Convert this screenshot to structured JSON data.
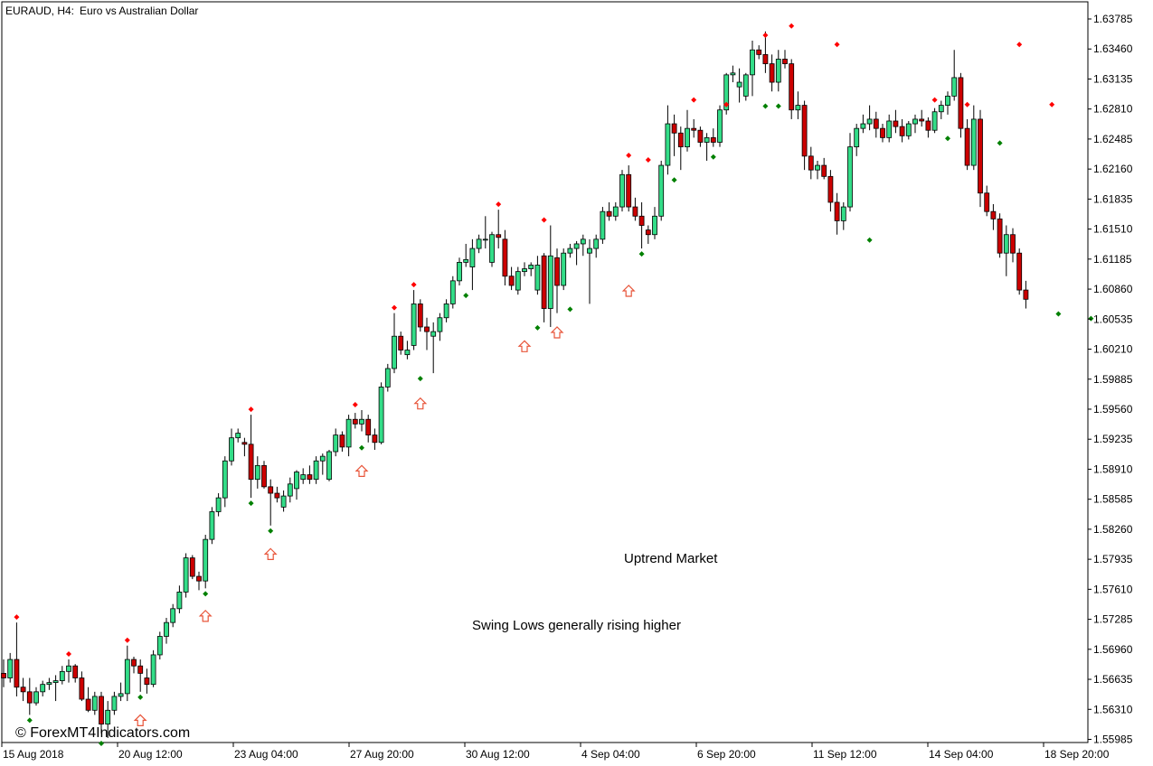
{
  "header": {
    "symbol": "EURAUD, H4:",
    "description": "Euro vs Australian Dollar"
  },
  "watermark": "© ForexMT4Indicators.com",
  "annotations": {
    "trend": "Uptrend Market",
    "note": "Swing Lows generally rising higher"
  },
  "colors": {
    "bull": "#33dd88",
    "bear": "#cc0000",
    "frame": "#000000",
    "swing_high_dot": "#ff0000",
    "swing_low_dot": "#008000",
    "arrow": "#e8553a"
  },
  "chart_data": {
    "type": "candlestick",
    "symbol": "EURAUD",
    "timeframe": "H4",
    "ylim": [
      1.5585,
      1.6395
    ],
    "price_labels": [
      "1.63785",
      "1.63460",
      "1.63135",
      "1.62810",
      "1.62485",
      "1.62160",
      "1.61835",
      "1.61510",
      "1.61185",
      "1.60860",
      "1.60535",
      "1.60210",
      "1.59885",
      "1.59560",
      "1.59235",
      "1.58910",
      "1.58585",
      "1.58260",
      "1.57935",
      "1.57610",
      "1.57285",
      "1.56960",
      "1.56635",
      "1.56310",
      "1.55985"
    ],
    "time_labels": [
      "15 Aug 2018",
      "20 Aug 12:00",
      "23 Aug 04:00",
      "27 Aug 20:00",
      "30 Aug 12:00",
      "4 Sep 04:00",
      "6 Sep 20:00",
      "11 Sep 12:00",
      "14 Sep 04:00",
      "18 Sep 20:00"
    ],
    "candles": [
      [
        1.567,
        1.5685,
        1.5655,
        1.5665
      ],
      [
        1.5665,
        1.5692,
        1.566,
        1.5685
      ],
      [
        1.5685,
        1.5725,
        1.5645,
        1.5655
      ],
      [
        1.5655,
        1.5665,
        1.564,
        1.565
      ],
      [
        1.565,
        1.5665,
        1.5625,
        1.5638
      ],
      [
        1.5638,
        1.5655,
        1.5635,
        1.565
      ],
      [
        1.565,
        1.5662,
        1.5645,
        1.5658
      ],
      [
        1.5658,
        1.5665,
        1.5652,
        1.566
      ],
      [
        1.566,
        1.5668,
        1.564,
        1.5662
      ],
      [
        1.5662,
        1.5678,
        1.5658,
        1.5672
      ],
      [
        1.5672,
        1.5685,
        1.566,
        1.5678
      ],
      [
        1.5678,
        1.568,
        1.566,
        1.5665
      ],
      [
        1.5665,
        1.5672,
        1.564,
        1.5642
      ],
      [
        1.5642,
        1.5655,
        1.5628,
        1.563
      ],
      [
        1.563,
        1.565,
        1.5625,
        1.5645
      ],
      [
        1.5645,
        1.565,
        1.5605,
        1.5615
      ],
      [
        1.5615,
        1.564,
        1.56,
        1.563
      ],
      [
        1.563,
        1.565,
        1.5625,
        1.5645
      ],
      [
        1.5645,
        1.566,
        1.564,
        1.5648
      ],
      [
        1.5648,
        1.57,
        1.564,
        1.5685
      ],
      [
        1.5685,
        1.5688,
        1.567,
        1.5678
      ],
      [
        1.5678,
        1.5685,
        1.565,
        1.567
      ],
      [
        1.5665,
        1.5675,
        1.5648,
        1.5658
      ],
      [
        1.5658,
        1.5695,
        1.5655,
        1.569
      ],
      [
        1.569,
        1.5715,
        1.5685,
        1.571
      ],
      [
        1.571,
        1.573,
        1.5702,
        1.5725
      ],
      [
        1.5725,
        1.5745,
        1.572,
        1.574
      ],
      [
        1.574,
        1.5765,
        1.5735,
        1.5758
      ],
      [
        1.5758,
        1.58,
        1.5752,
        1.5795
      ],
      [
        1.5795,
        1.5798,
        1.5772,
        1.5775
      ],
      [
        1.5775,
        1.578,
        1.576,
        1.577
      ],
      [
        1.577,
        1.582,
        1.5762,
        1.5815
      ],
      [
        1.5815,
        1.585,
        1.581,
        1.5845
      ],
      [
        1.5845,
        1.5865,
        1.584,
        1.586
      ],
      [
        1.586,
        1.5905,
        1.585,
        1.59
      ],
      [
        1.59,
        1.5935,
        1.5895,
        1.5925
      ],
      [
        1.5925,
        1.5935,
        1.592,
        1.593
      ],
      [
        1.592,
        1.5925,
        1.5905,
        1.5918
      ],
      [
        1.5918,
        1.595,
        1.586,
        1.588
      ],
      [
        1.588,
        1.5905,
        1.587,
        1.5895
      ],
      [
        1.5895,
        1.59,
        1.587,
        1.5872
      ],
      [
        1.5872,
        1.588,
        1.583,
        1.5865
      ],
      [
        1.5865,
        1.5872,
        1.5855,
        1.586
      ],
      [
        1.585,
        1.5868,
        1.5845,
        1.5862
      ],
      [
        1.5862,
        1.5882,
        1.5855,
        1.5875
      ],
      [
        1.587,
        1.589,
        1.5858,
        1.5888
      ],
      [
        1.588,
        1.5892,
        1.5875,
        1.5885
      ],
      [
        1.5885,
        1.5895,
        1.5875,
        1.588
      ],
      [
        1.588,
        1.5905,
        1.5875,
        1.59
      ],
      [
        1.59,
        1.5908,
        1.5885,
        1.5905
      ],
      [
        1.588,
        1.5912,
        1.5878,
        1.591
      ],
      [
        1.591,
        1.5935,
        1.5905,
        1.5928
      ],
      [
        1.5928,
        1.5932,
        1.591,
        1.5915
      ],
      [
        1.5915,
        1.595,
        1.5905,
        1.5945
      ],
      [
        1.5945,
        1.5952,
        1.5935,
        1.594
      ],
      [
        1.594,
        1.5955,
        1.5932,
        1.5945
      ],
      [
        1.5945,
        1.595,
        1.592,
        1.5928
      ],
      [
        1.5928,
        1.5935,
        1.5912,
        1.592
      ],
      [
        1.592,
        1.5985,
        1.5918,
        1.598
      ],
      [
        1.598,
        1.6005,
        1.5975,
        1.6
      ],
      [
        1.6,
        1.606,
        1.5995,
        1.6035
      ],
      [
        1.6035,
        1.604,
        1.6015,
        1.602
      ],
      [
        1.6015,
        1.603,
        1.601,
        1.602
      ],
      [
        1.6025,
        1.6085,
        1.602,
        1.607
      ],
      [
        1.607,
        1.6075,
        1.604,
        1.6045
      ],
      [
        1.6045,
        1.6055,
        1.602,
        1.604
      ],
      [
        1.6035,
        1.605,
        1.5995,
        1.604
      ],
      [
        1.604,
        1.606,
        1.603,
        1.6055
      ],
      [
        1.6055,
        1.6075,
        1.605,
        1.607
      ],
      [
        1.607,
        1.61,
        1.6065,
        1.6095
      ],
      [
        1.6095,
        1.612,
        1.609,
        1.6115
      ],
      [
        1.6115,
        1.6135,
        1.611,
        1.6118
      ],
      [
        1.611,
        1.614,
        1.6085,
        1.613
      ],
      [
        1.613,
        1.6145,
        1.6125,
        1.614
      ],
      [
        1.614,
        1.6165,
        1.613,
        1.614
      ],
      [
        1.6115,
        1.6148,
        1.611,
        1.6145
      ],
      [
        1.6145,
        1.6172,
        1.613,
        1.6142
      ],
      [
        1.614,
        1.615,
        1.609,
        1.61
      ],
      [
        1.61,
        1.611,
        1.6085,
        1.609
      ],
      [
        1.6085,
        1.611,
        1.608,
        1.6105
      ],
      [
        1.6105,
        1.6115,
        1.61,
        1.6108
      ],
      [
        1.6108,
        1.6115,
        1.61,
        1.6112
      ],
      [
        1.6085,
        1.6122,
        1.608,
        1.6112
      ],
      [
        1.6122,
        1.6125,
        1.605,
        1.6065
      ],
      [
        1.6065,
        1.6155,
        1.6045,
        1.6122
      ],
      [
        1.612,
        1.613,
        1.606,
        1.609
      ],
      [
        1.609,
        1.613,
        1.6085,
        1.6125
      ],
      [
        1.6125,
        1.6135,
        1.612,
        1.613
      ],
      [
        1.613,
        1.6138,
        1.6112,
        1.6135
      ],
      [
        1.6135,
        1.6145,
        1.6122,
        1.614
      ],
      [
        1.6125,
        1.614,
        1.607,
        1.613
      ],
      [
        1.613,
        1.6145,
        1.612,
        1.614
      ],
      [
        1.614,
        1.6175,
        1.6135,
        1.617
      ],
      [
        1.617,
        1.618,
        1.616,
        1.6165
      ],
      [
        1.6165,
        1.618,
        1.616,
        1.6175
      ],
      [
        1.6175,
        1.6215,
        1.617,
        1.621
      ],
      [
        1.621,
        1.622,
        1.617,
        1.6175
      ],
      [
        1.6175,
        1.6185,
        1.616,
        1.6165
      ],
      [
        1.6165,
        1.618,
        1.613,
        1.6155
      ],
      [
        1.615,
        1.6155,
        1.6135,
        1.6145
      ],
      [
        1.6145,
        1.6175,
        1.614,
        1.6165
      ],
      [
        1.6165,
        1.6225,
        1.616,
        1.622
      ],
      [
        1.622,
        1.6285,
        1.621,
        1.6265
      ],
      [
        1.6265,
        1.6275,
        1.623,
        1.6255
      ],
      [
        1.6255,
        1.6262,
        1.6215,
        1.624
      ],
      [
        1.624,
        1.628,
        1.6235,
        1.626
      ],
      [
        1.626,
        1.627,
        1.625,
        1.6258
      ],
      [
        1.6258,
        1.6262,
        1.624,
        1.6245
      ],
      [
        1.6245,
        1.6255,
        1.6225,
        1.625
      ],
      [
        1.625,
        1.626,
        1.624,
        1.6245
      ],
      [
        1.6245,
        1.6285,
        1.624,
        1.628
      ],
      [
        1.628,
        1.632,
        1.6275,
        1.6318
      ],
      [
        1.6318,
        1.6328,
        1.631,
        1.632
      ],
      [
        1.6305,
        1.6325,
        1.6288,
        1.631
      ],
      [
        1.6295,
        1.632,
        1.629,
        1.6318
      ],
      [
        1.6318,
        1.6355,
        1.6295,
        1.6345
      ],
      [
        1.6345,
        1.635,
        1.6335,
        1.634
      ],
      [
        1.634,
        1.6365,
        1.632,
        1.633
      ],
      [
        1.633,
        1.634,
        1.63,
        1.631
      ],
      [
        1.631,
        1.6345,
        1.63,
        1.6335
      ],
      [
        1.6335,
        1.6345,
        1.6325,
        1.633
      ],
      [
        1.633,
        1.6335,
        1.627,
        1.628
      ],
      [
        1.628,
        1.63,
        1.627,
        1.6285
      ],
      [
        1.6285,
        1.629,
        1.6215,
        1.623
      ],
      [
        1.623,
        1.624,
        1.6205,
        1.6215
      ],
      [
        1.6215,
        1.6225,
        1.6205,
        1.622
      ],
      [
        1.622,
        1.6228,
        1.6205,
        1.6208
      ],
      [
        1.6208,
        1.6215,
        1.617,
        1.618
      ],
      [
        1.618,
        1.619,
        1.6145,
        1.616
      ],
      [
        1.616,
        1.618,
        1.615,
        1.6175
      ],
      [
        1.6175,
        1.6255,
        1.617,
        1.624
      ],
      [
        1.624,
        1.6265,
        1.623,
        1.626
      ],
      [
        1.626,
        1.6275,
        1.6255,
        1.6265
      ],
      [
        1.6265,
        1.6285,
        1.6258,
        1.627
      ],
      [
        1.627,
        1.6278,
        1.625,
        1.626
      ],
      [
        1.626,
        1.6265,
        1.6245,
        1.625
      ],
      [
        1.625,
        1.6275,
        1.6245,
        1.6268
      ],
      [
        1.6268,
        1.628,
        1.6255,
        1.6262
      ],
      [
        1.6262,
        1.627,
        1.6245,
        1.6252
      ],
      [
        1.6252,
        1.6268,
        1.6248,
        1.6265
      ],
      [
        1.6265,
        1.6275,
        1.6255,
        1.627
      ],
      [
        1.627,
        1.628,
        1.6262,
        1.6268
      ],
      [
        1.6268,
        1.6272,
        1.625,
        1.6258
      ],
      [
        1.6258,
        1.6282,
        1.6255,
        1.6278
      ],
      [
        1.6278,
        1.629,
        1.627,
        1.6285
      ],
      [
        1.6285,
        1.63,
        1.6275,
        1.6295
      ],
      [
        1.6295,
        1.6345,
        1.629,
        1.6315
      ],
      [
        1.6315,
        1.632,
        1.625,
        1.626
      ],
      [
        1.626,
        1.627,
        1.6215,
        1.622
      ],
      [
        1.622,
        1.6285,
        1.6215,
        1.627
      ],
      [
        1.627,
        1.628,
        1.6175,
        1.619
      ],
      [
        1.619,
        1.6198,
        1.6165,
        1.617
      ],
      [
        1.617,
        1.6178,
        1.615,
        1.6162
      ],
      [
        1.6162,
        1.6168,
        1.612,
        1.6125
      ],
      [
        1.6125,
        1.6155,
        1.61,
        1.6145
      ],
      [
        1.6145,
        1.6152,
        1.6115,
        1.6125
      ],
      [
        1.6125,
        1.613,
        1.608,
        1.6085
      ],
      [
        1.6085,
        1.6095,
        1.6065,
        1.6075
      ]
    ],
    "swing_highs": [
      [
        2,
        1.5725
      ],
      [
        10,
        1.5685
      ],
      [
        19,
        1.57
      ],
      [
        38,
        1.595
      ],
      [
        54,
        1.5955
      ],
      [
        60,
        1.606
      ],
      [
        63,
        1.6085
      ],
      [
        76,
        1.6172
      ],
      [
        83,
        1.6155
      ],
      [
        96,
        1.6225
      ],
      [
        99,
        1.622
      ],
      [
        106,
        1.6285
      ],
      [
        111,
        1.628
      ],
      [
        117,
        1.6355
      ],
      [
        121,
        1.6365
      ],
      [
        128,
        1.6345
      ],
      [
        143,
        1.6285
      ],
      [
        148,
        1.628
      ],
      [
        156,
        1.6345
      ],
      [
        161,
        1.628
      ]
    ],
    "swing_lows": [
      [
        4,
        1.5625
      ],
      [
        15,
        1.56
      ],
      [
        21,
        1.565
      ],
      [
        31,
        1.5762
      ],
      [
        38,
        1.586
      ],
      [
        41,
        1.583
      ],
      [
        55,
        1.592
      ],
      [
        64,
        1.5995
      ],
      [
        71,
        1.6085
      ],
      [
        82,
        1.605
      ],
      [
        87,
        1.607
      ],
      [
        98,
        1.613
      ],
      [
        103,
        1.621
      ],
      [
        109,
        1.6235
      ],
      [
        117,
        1.629
      ],
      [
        119,
        1.629
      ],
      [
        133,
        1.6145
      ],
      [
        145,
        1.6255
      ],
      [
        153,
        1.625
      ],
      [
        162,
        1.6065
      ],
      [
        167,
        1.606
      ]
    ],
    "buy_arrows": [
      [
        21,
        1.5625
      ],
      [
        31,
        1.5738
      ],
      [
        41,
        1.5805
      ],
      [
        55,
        1.5895
      ],
      [
        64,
        1.5968
      ],
      [
        80,
        1.603
      ],
      [
        85,
        1.6045
      ],
      [
        96,
        1.609
      ]
    ]
  }
}
